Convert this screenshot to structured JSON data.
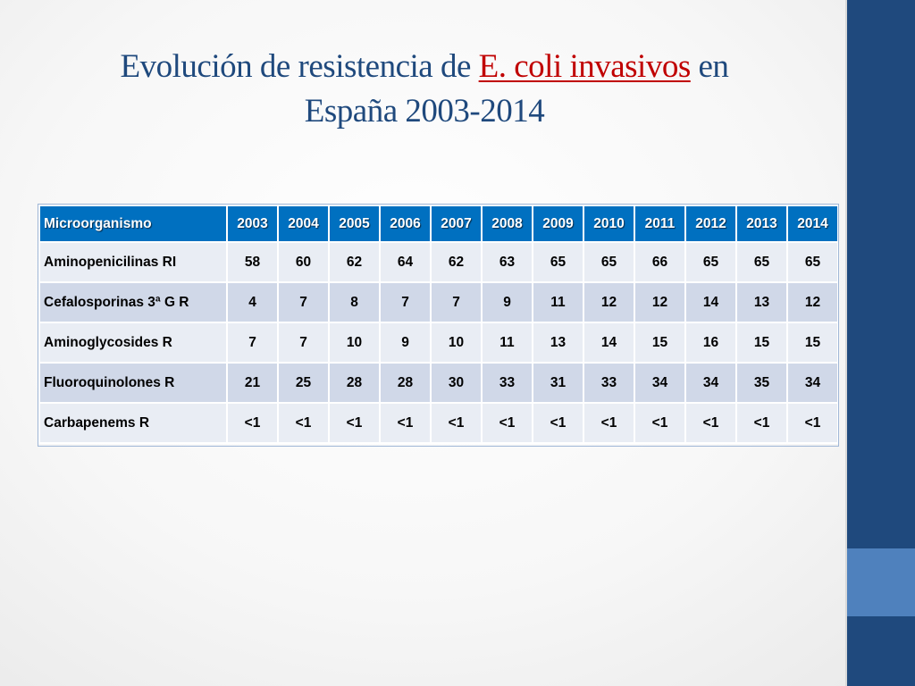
{
  "slide": {
    "title_part1": "Evolución de resistencia de ",
    "title_highlight": "E. coli invasivos",
    "title_part2": " en",
    "title_line2": "España 2003-2014"
  },
  "table": {
    "header": [
      "Microorganismo",
      "2003",
      "2004",
      "2005",
      "2006",
      "2007",
      "2008",
      "2009",
      "2010",
      "2011",
      "2012",
      "2013",
      "2014"
    ],
    "rows": [
      [
        "Aminopenicilinas RI",
        "58",
        "60",
        "62",
        "64",
        "62",
        "63",
        "65",
        "65",
        "66",
        "65",
        "65",
        "65"
      ],
      [
        "Cefalosporinas 3ª G R",
        "4",
        "7",
        "8",
        "7",
        "7",
        "9",
        "11",
        "12",
        "12",
        "14",
        "13",
        "12"
      ],
      [
        "Aminoglycosides R",
        "7",
        "7",
        "10",
        "9",
        "10",
        "11",
        "13",
        "14",
        "15",
        "16",
        "15",
        "15"
      ],
      [
        "Fluoroquinolones R",
        "21",
        "25",
        "28",
        "28",
        "30",
        "33",
        "31",
        "33",
        "34",
        "34",
        "35",
        "34"
      ],
      [
        "Carbapenems R",
        "<1",
        "<1",
        "<1",
        "<1",
        "<1",
        "<1",
        "<1",
        "<1",
        "<1",
        "<1",
        "<1",
        "<1"
      ]
    ]
  },
  "colors": {
    "title": "#1f497d",
    "title_highlight": "#c00000",
    "header_bg": "#0070c0",
    "row_light": "#e9edf4",
    "row_dark": "#d0d8e8",
    "side_bar": "#1f497d",
    "side_bar_accent": "#4f81bd"
  }
}
